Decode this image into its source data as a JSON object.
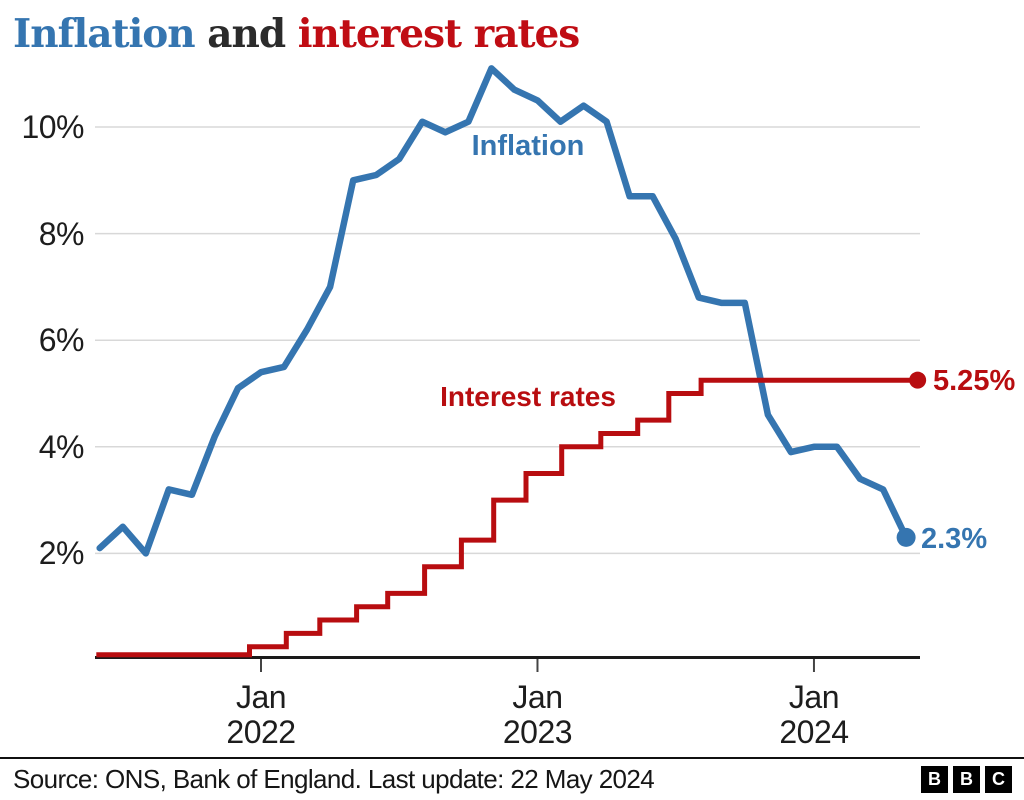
{
  "title": {
    "part_blue": "Inflation",
    "part_mid": " and ",
    "part_red": "interest rates"
  },
  "colors": {
    "blue": "#3575b0",
    "red": "#b80d10",
    "title_red": "#c00d14",
    "title_dark": "#2b2b2b",
    "grid": "#d8d8d8",
    "axis": "#1a1a1a",
    "tick": "#444444",
    "text": "#1d1d1d"
  },
  "chart_data": {
    "type": "line",
    "title": "Inflation and interest rates",
    "xlabel": "",
    "ylabel": "",
    "x_unit": "months relative to Jan 2022 tick",
    "ylim": [
      0,
      11.5
    ],
    "grid": true,
    "legend_position": "inline-annotations",
    "yticks": [
      {
        "v": 10,
        "label": "10%"
      },
      {
        "v": 8,
        "label": "8%"
      },
      {
        "v": 6,
        "label": "6%"
      },
      {
        "v": 4,
        "label": "4%"
      },
      {
        "v": 2,
        "label": "2%"
      }
    ],
    "xticks": [
      {
        "m": 0,
        "line1": "Jan",
        "line2": "2022"
      },
      {
        "m": 12,
        "line1": "Jan",
        "line2": "2023"
      },
      {
        "m": 24,
        "line1": "Jan",
        "line2": "2024"
      }
    ],
    "series": [
      {
        "name": "Inflation",
        "annotation": "Inflation",
        "end_label": "2.3%",
        "last_value": 2.3,
        "points": [
          {
            "m": -7,
            "v": 2.1
          },
          {
            "m": -6,
            "v": 2.5
          },
          {
            "m": -5,
            "v": 2.0
          },
          {
            "m": -4,
            "v": 3.2
          },
          {
            "m": -3,
            "v": 3.1
          },
          {
            "m": -2,
            "v": 4.2
          },
          {
            "m": -1,
            "v": 5.1
          },
          {
            "m": 0,
            "v": 5.4
          },
          {
            "m": 1,
            "v": 5.5
          },
          {
            "m": 2,
            "v": 6.2
          },
          {
            "m": 3,
            "v": 7.0
          },
          {
            "m": 4,
            "v": 9.0
          },
          {
            "m": 5,
            "v": 9.1
          },
          {
            "m": 6,
            "v": 9.4
          },
          {
            "m": 7,
            "v": 10.1
          },
          {
            "m": 8,
            "v": 9.9
          },
          {
            "m": 9,
            "v": 10.1
          },
          {
            "m": 10,
            "v": 11.1
          },
          {
            "m": 11,
            "v": 10.7
          },
          {
            "m": 12,
            "v": 10.5
          },
          {
            "m": 13,
            "v": 10.1
          },
          {
            "m": 14,
            "v": 10.4
          },
          {
            "m": 15,
            "v": 10.1
          },
          {
            "m": 16,
            "v": 8.7
          },
          {
            "m": 17,
            "v": 8.7
          },
          {
            "m": 18,
            "v": 7.9
          },
          {
            "m": 19,
            "v": 6.8
          },
          {
            "m": 20,
            "v": 6.7
          },
          {
            "m": 21,
            "v": 6.7
          },
          {
            "m": 22,
            "v": 4.6
          },
          {
            "m": 23,
            "v": 3.9
          },
          {
            "m": 24,
            "v": 4.0
          },
          {
            "m": 25,
            "v": 4.0
          },
          {
            "m": 26,
            "v": 3.4
          },
          {
            "m": 27,
            "v": 3.2
          },
          {
            "m": 28,
            "v": 2.3
          }
        ]
      },
      {
        "name": "Interest rates",
        "annotation": "Interest rates",
        "end_label": "5.25%",
        "last_value": 5.25,
        "end_m": 28.5,
        "steps": [
          {
            "m": -7.15,
            "rate": 0.1
          },
          {
            "m": -0.5,
            "rate": 0.25
          },
          {
            "m": 1.1,
            "rate": 0.5
          },
          {
            "m": 2.55,
            "rate": 0.75
          },
          {
            "m": 4.15,
            "rate": 1.0
          },
          {
            "m": 5.5,
            "rate": 1.25
          },
          {
            "m": 7.1,
            "rate": 1.75
          },
          {
            "m": 8.7,
            "rate": 2.25
          },
          {
            "m": 10.1,
            "rate": 3.0
          },
          {
            "m": 11.5,
            "rate": 3.5
          },
          {
            "m": 13.05,
            "rate": 4.0
          },
          {
            "m": 14.75,
            "rate": 4.25
          },
          {
            "m": 16.35,
            "rate": 4.5
          },
          {
            "m": 17.7,
            "rate": 5.0
          },
          {
            "m": 19.1,
            "rate": 5.25
          }
        ]
      }
    ]
  },
  "footer": {
    "source": "Source: ONS, Bank of England. Last update: 22 May 2024",
    "logo": [
      "B",
      "B",
      "C"
    ]
  }
}
